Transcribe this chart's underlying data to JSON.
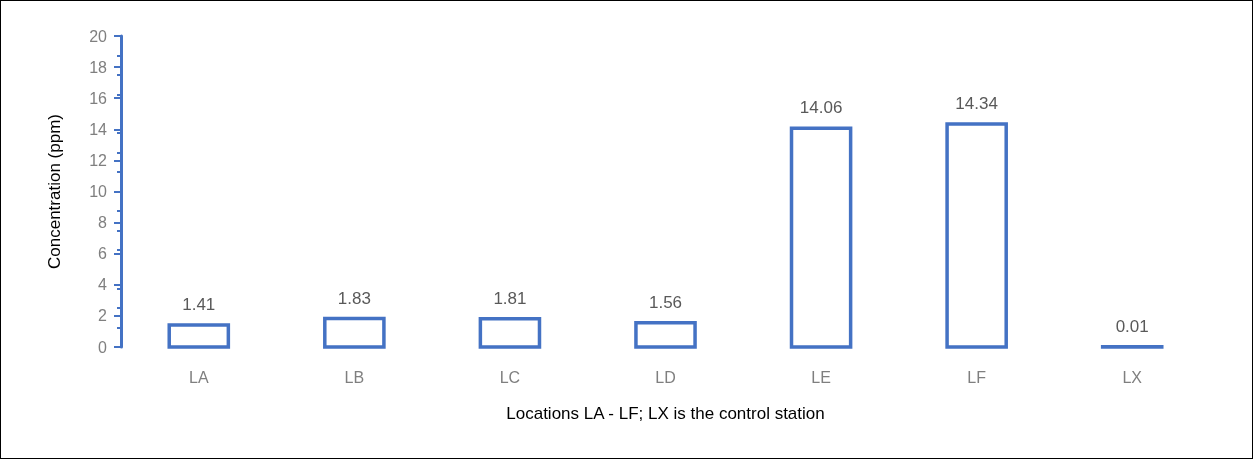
{
  "chart_data": {
    "type": "bar",
    "xlabel": "Locations LA - LF; LX is the control station",
    "ylabel": "Concentration (ppm)",
    "categories": [
      "LA",
      "LB",
      "LC",
      "LD",
      "LE",
      "LF",
      "LX"
    ],
    "values": [
      1.41,
      1.83,
      1.81,
      1.56,
      14.06,
      14.34,
      0.01
    ],
    "color": "#4472c4",
    "ylim": [
      0,
      20
    ],
    "yticks": [
      0,
      2,
      4,
      6,
      8,
      10,
      12,
      14,
      16,
      18,
      20
    ],
    "grid": false,
    "data_labels": true
  }
}
